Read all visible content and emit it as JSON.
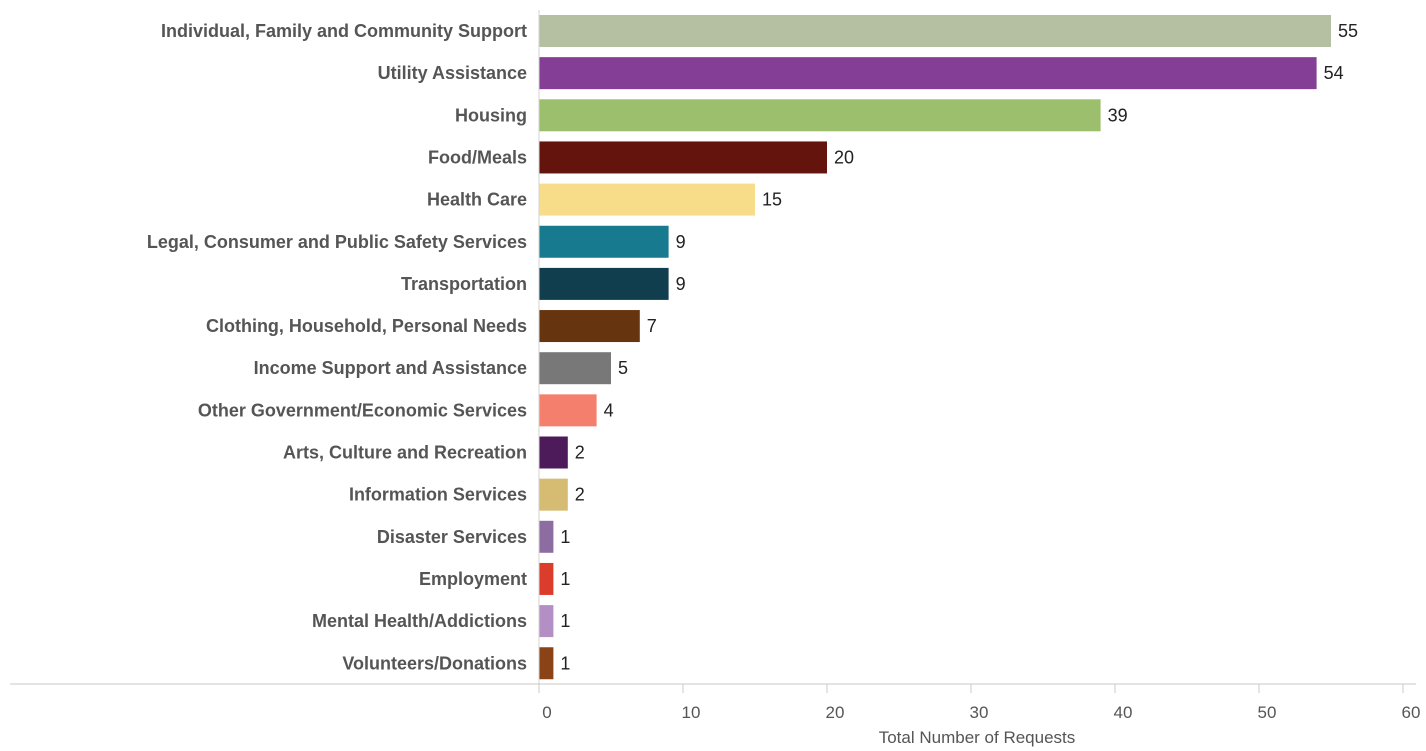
{
  "chart_data": {
    "type": "bar",
    "orientation": "horizontal",
    "categories": [
      "Individual, Family and Community Support",
      "Utility Assistance",
      "Housing",
      "Food/Meals",
      "Health Care",
      "Legal, Consumer and Public Safety Services",
      "Transportation",
      "Clothing, Household, Personal Needs",
      "Income Support and Assistance",
      "Other Government/Economic Services",
      "Arts, Culture and Recreation",
      "Information Services",
      "Disaster Services",
      "Employment",
      "Mental Health/Addictions",
      "Volunteers/Donations"
    ],
    "values": [
      55,
      54,
      39,
      20,
      15,
      9,
      9,
      7,
      5,
      4,
      2,
      2,
      1,
      1,
      1,
      1
    ],
    "colors": [
      "#b5bfa2",
      "#843e96",
      "#9cbf6e",
      "#65130d",
      "#f7dc8a",
      "#177a8f",
      "#113e4f",
      "#66350f",
      "#787878",
      "#f47f6c",
      "#4e1b5a",
      "#d6bb72",
      "#8d6da1",
      "#dc3c2b",
      "#b48fc6",
      "#8a4317"
    ],
    "title": "",
    "xlabel": "Total Number of Requests",
    "ylabel": "",
    "xlim": [
      0,
      60
    ],
    "xticks": [
      0,
      10,
      20,
      30,
      40,
      50,
      60
    ],
    "data_labels": true,
    "grid": false,
    "legend": "none"
  }
}
